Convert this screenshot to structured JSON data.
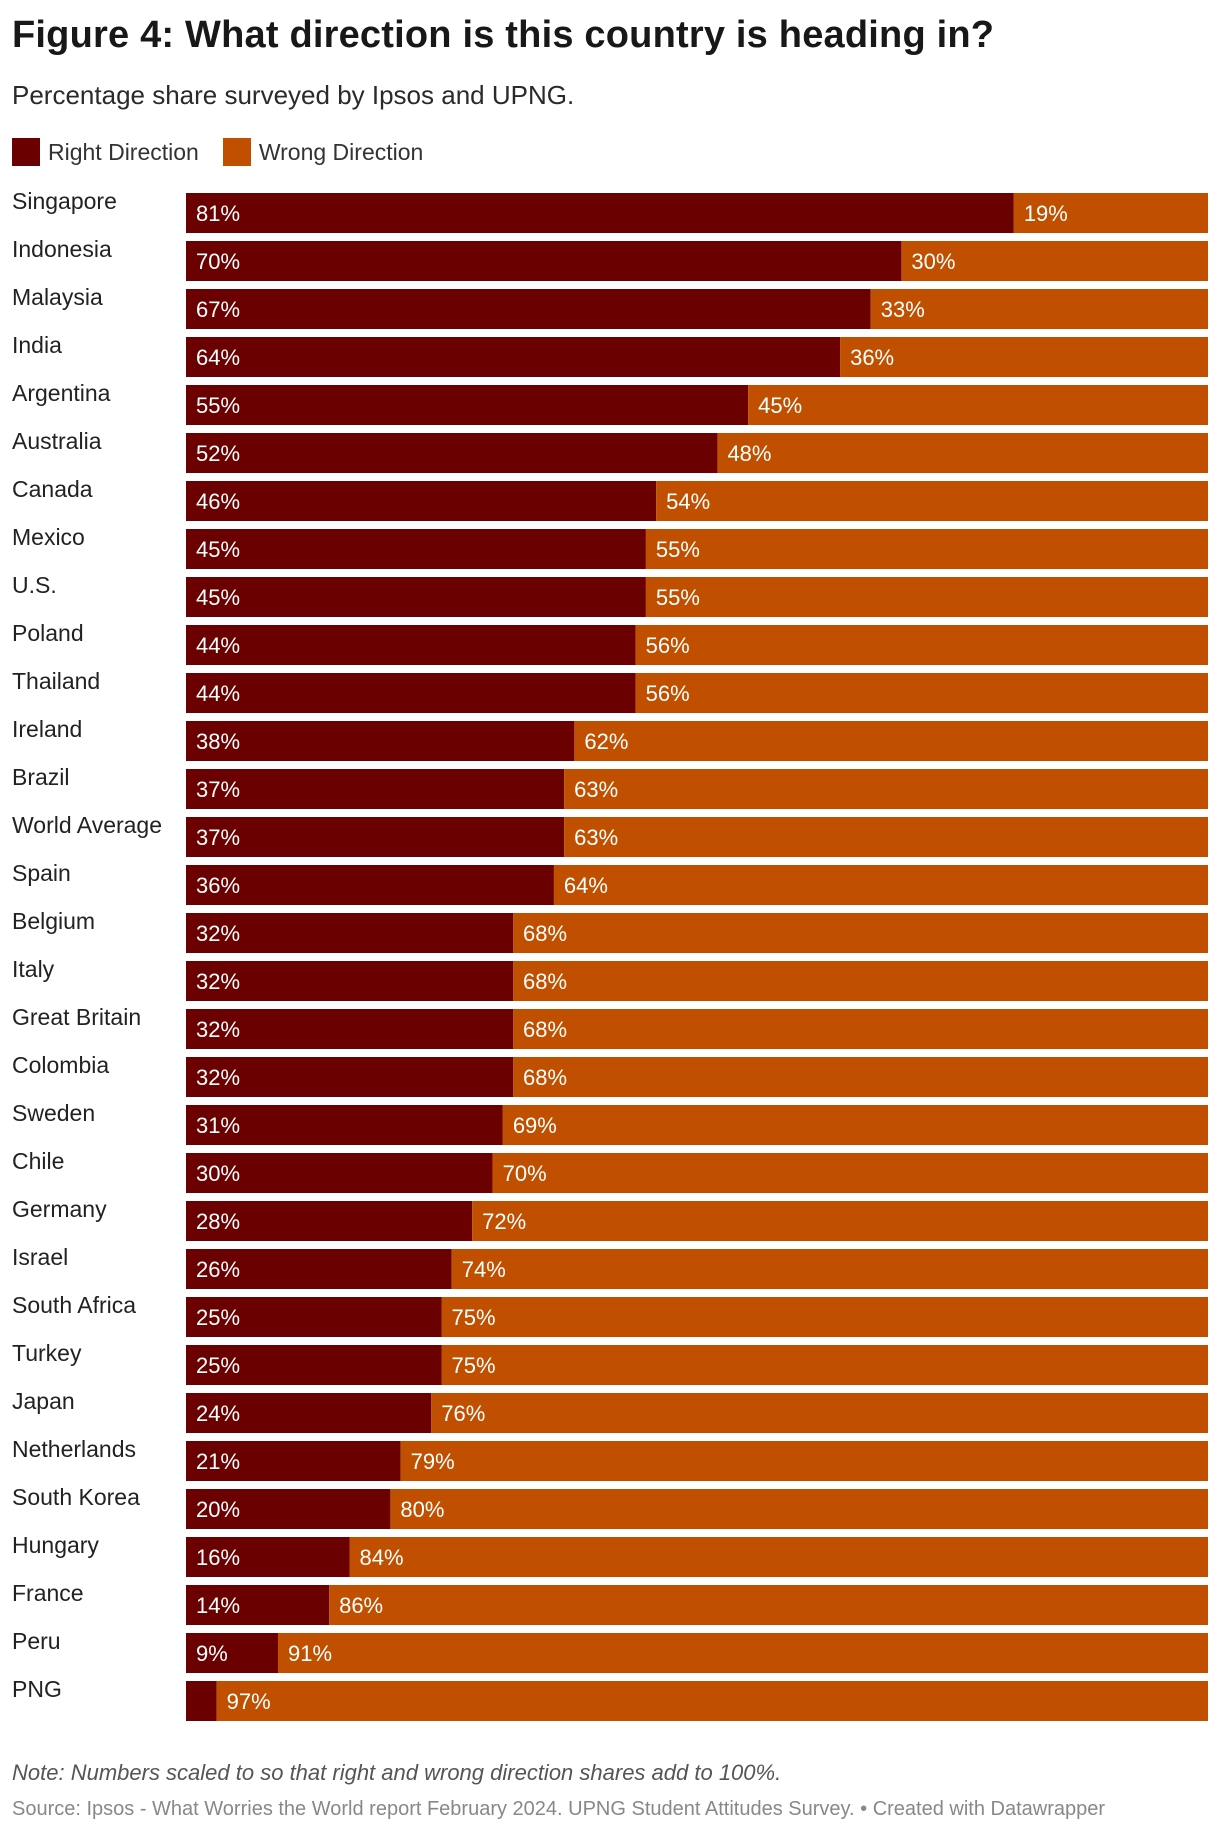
{
  "title": "Figure 4: What direction is this country is heading in?",
  "subtitle": "Percentage share surveyed by Ipsos and UPNG.",
  "legend": [
    {
      "label": "Right Direction",
      "color": "#6b0000"
    },
    {
      "label": "Wrong Direction",
      "color": "#c05000"
    }
  ],
  "note": "Note: Numbers scaled to so that right and wrong direction shares add to 100%.",
  "source": "Source: Ipsos - What Worries the World report February 2024. UPNG Student Attitudes Survey. • Created with Datawrapper",
  "chart_data": {
    "type": "bar",
    "orientation": "horizontal",
    "stacked": true,
    "xlim": [
      0,
      100
    ],
    "categories": [
      "Singapore",
      "Indonesia",
      "Malaysia",
      "India",
      "Argentina",
      "Australia",
      "Canada",
      "Mexico",
      "U.S.",
      "Poland",
      "Thailand",
      "Ireland",
      "Brazil",
      "World Average",
      "Spain",
      "Belgium",
      "Italy",
      "Great Britain",
      "Colombia",
      "Sweden",
      "Chile",
      "Germany",
      "Israel",
      "South Africa",
      "Turkey",
      "Japan",
      "Netherlands",
      "South Korea",
      "Hungary",
      "France",
      "Peru",
      "PNG"
    ],
    "series": [
      {
        "name": "Right Direction",
        "color": "#6b0000",
        "values": [
          81,
          70,
          67,
          64,
          55,
          52,
          46,
          45,
          45,
          44,
          44,
          38,
          37,
          37,
          36,
          32,
          32,
          32,
          32,
          31,
          30,
          28,
          26,
          25,
          25,
          24,
          21,
          20,
          16,
          14,
          9,
          3
        ],
        "labels": [
          "81%",
          "70%",
          "67%",
          "64%",
          "55%",
          "52%",
          "46%",
          "45%",
          "45%",
          "44%",
          "44%",
          "38%",
          "37%",
          "37%",
          "36%",
          "32%",
          "32%",
          "32%",
          "32%",
          "31%",
          "30%",
          "28%",
          "26%",
          "25%",
          "25%",
          "24%",
          "21%",
          "20%",
          "16%",
          "14%",
          "9%",
          ""
        ]
      },
      {
        "name": "Wrong Direction",
        "color": "#c05000",
        "values": [
          19,
          30,
          33,
          36,
          45,
          48,
          54,
          55,
          55,
          56,
          56,
          62,
          63,
          63,
          64,
          68,
          68,
          68,
          68,
          69,
          70,
          72,
          74,
          75,
          75,
          76,
          79,
          80,
          84,
          86,
          91,
          97
        ],
        "labels": [
          "19%",
          "30%",
          "33%",
          "36%",
          "45%",
          "48%",
          "54%",
          "55%",
          "55%",
          "56%",
          "56%",
          "62%",
          "63%",
          "63%",
          "64%",
          "68%",
          "68%",
          "68%",
          "68%",
          "69%",
          "70%",
          "72%",
          "74%",
          "75%",
          "75%",
          "76%",
          "79%",
          "80%",
          "84%",
          "86%",
          "91%",
          "97%"
        ]
      }
    ],
    "title": "Figure 4: What direction is this country is heading in?",
    "xlabel": "",
    "ylabel": ""
  }
}
